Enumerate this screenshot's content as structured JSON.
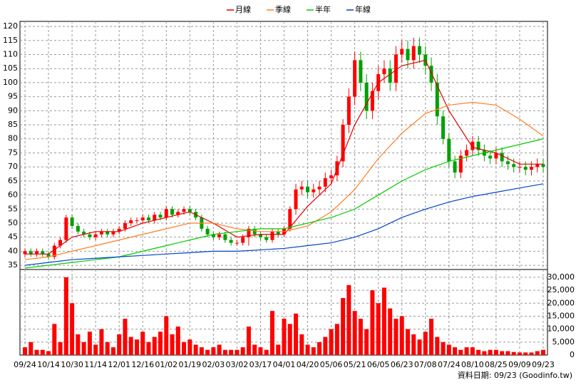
{
  "chart_data": {
    "type": "candlestick",
    "categories": [
      "09/24",
      null,
      null,
      null,
      "10/14",
      null,
      null,
      null,
      "10/30",
      null,
      null,
      null,
      "11/14",
      null,
      null,
      null,
      "12/01",
      null,
      null,
      null,
      "12/16",
      null,
      null,
      null,
      "01/02",
      null,
      null,
      null,
      "01/19",
      null,
      null,
      null,
      "02/03",
      null,
      null,
      null,
      "03/02",
      null,
      null,
      null,
      "03/17",
      null,
      null,
      null,
      "04/01",
      null,
      null,
      null,
      "04/20",
      null,
      null,
      null,
      "05/06",
      null,
      null,
      null,
      "05/21",
      null,
      null,
      null,
      "06/05",
      null,
      null,
      null,
      "06/23",
      null,
      null,
      null,
      "07/08",
      null,
      null,
      null,
      "07/24",
      null,
      null,
      null,
      "08/10",
      null,
      null,
      null,
      "08/25",
      null,
      null,
      null,
      "09/09",
      null,
      null,
      null,
      "09/23"
    ],
    "open": [
      39,
      40,
      39,
      40,
      39,
      38,
      42,
      44,
      52,
      49,
      47,
      46,
      45,
      46,
      47,
      46,
      47,
      48,
      50,
      51,
      51,
      52,
      51,
      53,
      52,
      55,
      53,
      54,
      55,
      54,
      52,
      48,
      46,
      45,
      46,
      44,
      43,
      43,
      45,
      48,
      46,
      45,
      44,
      47,
      46,
      48,
      55,
      62,
      63,
      61,
      62,
      63,
      66,
      67,
      72,
      85,
      95,
      108,
      100,
      90,
      97,
      103,
      105,
      100,
      110,
      112,
      108,
      113,
      110,
      106,
      100,
      88,
      80,
      72,
      68,
      74,
      76,
      79,
      76,
      74,
      73,
      75,
      72,
      71,
      70,
      70,
      69,
      70,
      71
    ],
    "high": [
      41,
      41,
      41,
      41,
      40,
      43,
      45,
      53,
      53,
      50,
      48,
      47,
      47,
      48,
      48,
      48,
      49,
      51,
      52,
      52,
      53,
      53,
      54,
      54,
      56,
      56,
      55,
      56,
      56,
      55,
      53,
      49,
      47,
      47,
      47,
      45,
      44,
      46,
      49,
      49,
      47,
      46,
      48,
      48,
      49,
      56,
      64,
      65,
      65,
      64,
      65,
      68,
      69,
      74,
      87,
      98,
      111,
      111,
      103,
      100,
      106,
      108,
      108,
      113,
      115,
      115,
      116,
      116,
      113,
      109,
      103,
      90,
      82,
      74,
      76,
      78,
      81,
      81,
      78,
      76,
      77,
      77,
      74,
      73,
      72,
      72,
      72,
      73,
      73
    ],
    "low": [
      38,
      38,
      38,
      38,
      37,
      37,
      41,
      43,
      48,
      46,
      45,
      44,
      44,
      45,
      45,
      45,
      46,
      47,
      49,
      50,
      50,
      50,
      50,
      51,
      51,
      52,
      52,
      53,
      53,
      51,
      47,
      45,
      44,
      44,
      43,
      42,
      42,
      42,
      42,
      45,
      44,
      43,
      43,
      45,
      45,
      47,
      53,
      60,
      59,
      59,
      60,
      61,
      64,
      65,
      70,
      82,
      92,
      97,
      87,
      87,
      94,
      100,
      97,
      97,
      107,
      105,
      105,
      107,
      103,
      97,
      85,
      78,
      70,
      66,
      66,
      72,
      74,
      74,
      72,
      71,
      71,
      70,
      69,
      68,
      68,
      67,
      67,
      68,
      68
    ],
    "close": [
      40,
      39,
      40,
      39,
      38,
      42,
      44,
      52,
      49,
      47,
      46,
      45,
      46,
      47,
      46,
      47,
      48,
      50,
      51,
      51,
      52,
      51,
      53,
      52,
      55,
      53,
      54,
      55,
      54,
      52,
      48,
      46,
      45,
      46,
      44,
      43,
      43,
      45,
      48,
      46,
      45,
      44,
      47,
      46,
      48,
      55,
      62,
      63,
      61,
      62,
      63,
      66,
      67,
      72,
      85,
      95,
      108,
      100,
      90,
      97,
      103,
      105,
      100,
      110,
      112,
      108,
      113,
      110,
      106,
      100,
      88,
      80,
      72,
      68,
      74,
      76,
      79,
      76,
      74,
      73,
      75,
      72,
      71,
      70,
      70,
      69,
      70,
      71,
      70
    ],
    "up_color": "#ff0000",
    "down_color": "#00a000",
    "ylim": [
      33.5,
      121.8
    ],
    "yticks": [
      35,
      40,
      45,
      50,
      55,
      60,
      65,
      70,
      75,
      80,
      85,
      90,
      95,
      100,
      105,
      110,
      115,
      120
    ],
    "grid": true,
    "series": [
      {
        "name": "月線",
        "color": "#dd0000",
        "x": [
          0,
          4,
          8,
          12,
          16,
          20,
          24,
          28,
          32,
          36,
          40,
          44,
          48,
          52,
          56,
          60,
          64,
          68,
          72,
          76,
          80,
          84,
          88
        ],
        "values": [
          39,
          39,
          45,
          47,
          47,
          50,
          52,
          54,
          50,
          45,
          46,
          46,
          56,
          64,
          85,
          100,
          106,
          108,
          90,
          77,
          75,
          71,
          71
        ]
      },
      {
        "name": "季線",
        "color": "#ff7f27",
        "x": [
          0,
          4,
          8,
          12,
          16,
          20,
          24,
          28,
          32,
          36,
          40,
          44,
          48,
          52,
          56,
          60,
          64,
          68,
          72,
          76,
          80,
          84,
          88
        ],
        "values": [
          37,
          38,
          40,
          42,
          44,
          46,
          48,
          50,
          50,
          48,
          47,
          47,
          49,
          54,
          62,
          73,
          82,
          89,
          92,
          93,
          92,
          87,
          81
        ]
      },
      {
        "name": "半年",
        "color": "#00cc00",
        "x": [
          0,
          4,
          8,
          12,
          16,
          20,
          24,
          28,
          32,
          36,
          40,
          44,
          48,
          52,
          56,
          60,
          64,
          68,
          72,
          76,
          80,
          84,
          88
        ],
        "values": [
          34,
          35,
          36,
          37,
          38,
          40,
          42,
          44,
          46,
          47,
          48,
          48,
          50,
          52,
          55,
          60,
          65,
          69,
          72,
          74,
          76,
          78,
          80
        ]
      },
      {
        "name": "年線",
        "color": "#0044cc",
        "x": [
          0,
          4,
          8,
          12,
          16,
          20,
          24,
          28,
          32,
          36,
          40,
          44,
          48,
          52,
          56,
          60,
          64,
          68,
          72,
          76,
          80,
          84,
          88
        ],
        "values": [
          35,
          36,
          37,
          37.5,
          38,
          38.5,
          39,
          39.5,
          40,
          40,
          40.5,
          41,
          42,
          43,
          45,
          48,
          52,
          55,
          57.5,
          59.5,
          61,
          62.5,
          64
        ]
      }
    ],
    "volume": {
      "color": "#ff0000",
      "values": [
        3000,
        5000,
        2000,
        2000,
        1500,
        12000,
        5000,
        30000,
        20000,
        8000,
        5000,
        9000,
        4000,
        10000,
        5000,
        3000,
        8000,
        14000,
        7000,
        6000,
        9000,
        5000,
        7000,
        9000,
        15000,
        8000,
        11000,
        5000,
        6000,
        4000,
        3000,
        2000,
        3000,
        4000,
        2000,
        2000,
        2000,
        3000,
        11000,
        4000,
        3000,
        2000,
        17000,
        4000,
        14000,
        12000,
        16000,
        8000,
        4000,
        3000,
        5000,
        7000,
        10000,
        12000,
        22000,
        27000,
        17000,
        14000,
        10000,
        25000,
        20000,
        26000,
        18000,
        14000,
        15000,
        10000,
        8000,
        6000,
        9000,
        14000,
        7000,
        5000,
        4000,
        3000,
        2000,
        3000,
        3000,
        2000,
        1500,
        2000,
        2000,
        1500,
        1500,
        1200,
        1000,
        1000,
        1000,
        1500,
        2000
      ],
      "ylim": [
        0,
        33000
      ],
      "yticks": [
        0,
        {
          "value": 5000,
          "label": "5,000"
        },
        {
          "value": 10000,
          "label": "10,000"
        },
        {
          "value": 15000,
          "label": "15,000"
        },
        {
          "value": 20000,
          "label": "20,000"
        },
        {
          "value": 25000,
          "label": "25,000"
        },
        {
          "value": 30000,
          "label": "30,000"
        }
      ]
    },
    "source": "資料日期: 09/23 (Goodinfo.tw)"
  }
}
